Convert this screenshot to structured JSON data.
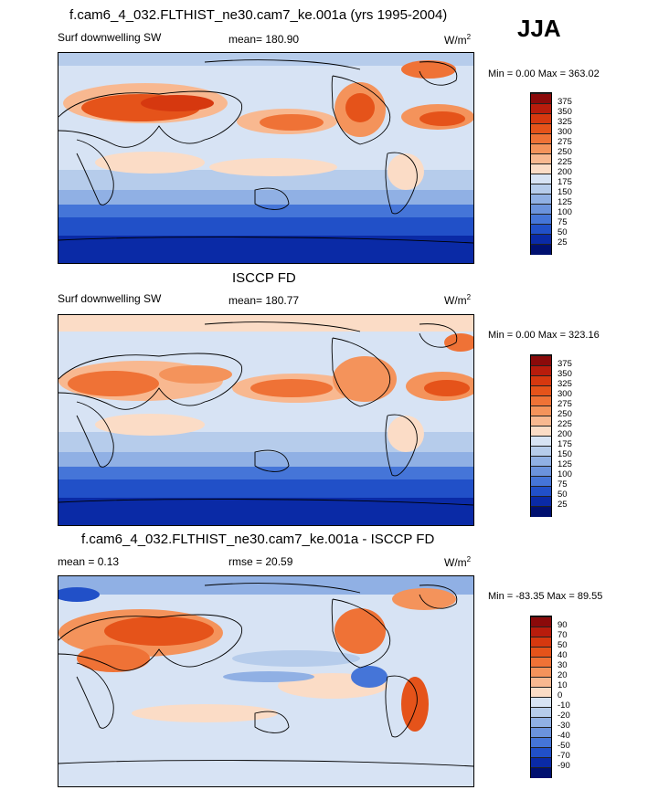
{
  "season": "JJA",
  "panels": [
    {
      "title": "f.cam6_4_032.FLTHIST_ne30.cam7_ke.001a (yrs 1995-2004)",
      "left_label": "Surf downwelling SW",
      "center_label": "mean= 180.90",
      "units": "W/m",
      "units_sup": "2",
      "minmax": "Min =   0.00 Max = 363.02"
    },
    {
      "title": "ISCCP FD",
      "left_label": "Surf downwelling SW",
      "center_label": "mean= 180.77",
      "units": "W/m",
      "units_sup": "2",
      "minmax": "Min =   0.00 Max = 323.16"
    },
    {
      "title": "f.cam6_4_032.FLTHIST_ne30.cam7_ke.001a - ISCCP FD",
      "left_label": "mean =   0.13",
      "center_label": "rmse =  20.59",
      "units": "W/m",
      "units_sup": "2",
      "minmax": "Min = -83.35 Max =  89.55"
    }
  ],
  "chart_data": [
    {
      "type": "heatmap",
      "title": "f.cam6_4_032.FLTHIST_ne30.cam7_ke.001a (yrs 1995-2004)",
      "colorbar_levels": [
        "375",
        "350",
        "325",
        "300",
        "275",
        "250",
        "225",
        "200",
        "175",
        "150",
        "125",
        "100",
        "75",
        "50",
        "25"
      ],
      "colorbar_colors": [
        "#8b0a0a",
        "#b81c0c",
        "#d6380f",
        "#e5531a",
        "#ef7236",
        "#f4935b",
        "#f8b890",
        "#fbdcc6",
        "#d7e3f4",
        "#b6cceb",
        "#90b0e4",
        "#6b93dd",
        "#4575d8",
        "#2150c8",
        "#0a2aa6",
        "#001070"
      ],
      "value_range": [
        0.0,
        363.02
      ],
      "grid": false
    },
    {
      "type": "heatmap",
      "title": "ISCCP FD",
      "colorbar_levels": [
        "375",
        "350",
        "325",
        "300",
        "275",
        "250",
        "225",
        "200",
        "175",
        "150",
        "125",
        "100",
        "75",
        "50",
        "25"
      ],
      "colorbar_colors": [
        "#8b0a0a",
        "#b81c0c",
        "#d6380f",
        "#e5531a",
        "#ef7236",
        "#f4935b",
        "#f8b890",
        "#fbdcc6",
        "#d7e3f4",
        "#b6cceb",
        "#90b0e4",
        "#6b93dd",
        "#4575d8",
        "#2150c8",
        "#0a2aa6",
        "#001070"
      ],
      "value_range": [
        0.0,
        323.16
      ],
      "grid": false
    },
    {
      "type": "heatmap",
      "title": "f.cam6_4_032.FLTHIST_ne30.cam7_ke.001a - ISCCP FD",
      "colorbar_levels": [
        "90",
        "70",
        "50",
        "40",
        "30",
        "20",
        "10",
        "0",
        "-10",
        "-20",
        "-30",
        "-40",
        "-50",
        "-70",
        "-90"
      ],
      "colorbar_colors": [
        "#8b0a0a",
        "#b81c0c",
        "#d6380f",
        "#e5531a",
        "#ef7236",
        "#f4935b",
        "#f8b890",
        "#fbdcc6",
        "#d7e3f4",
        "#b6cceb",
        "#90b0e4",
        "#6b93dd",
        "#4575d8",
        "#2150c8",
        "#0a2aa6",
        "#001070"
      ],
      "value_range": [
        -83.35,
        89.55
      ],
      "grid": false
    }
  ]
}
